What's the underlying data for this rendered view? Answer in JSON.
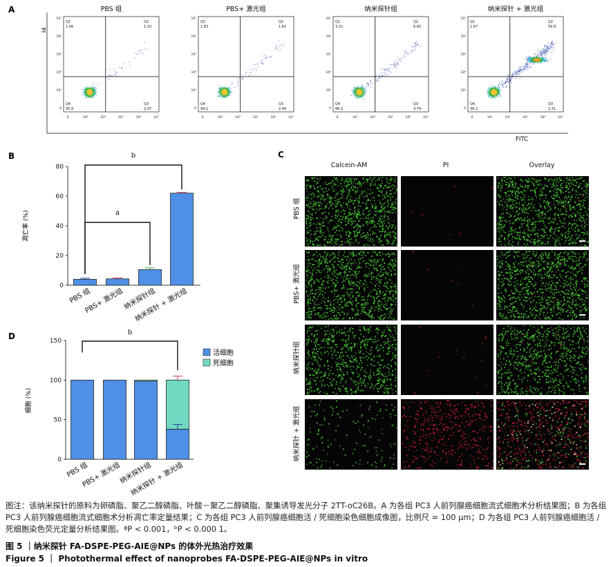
{
  "panel_letters": {
    "A": "A",
    "B": "B",
    "C": "C",
    "D": "D"
  },
  "flow": {
    "y_axis_label": "PI",
    "x_axis_label": "FITC",
    "x_ticks": [
      "0",
      "10³",
      "10⁴",
      "10⁵",
      "10⁶",
      "10⁷"
    ],
    "y_ticks": [
      "10⁷",
      "10⁶",
      "10⁵",
      "10⁴",
      "10³",
      "0"
    ],
    "plots": [
      {
        "title": "PBS 组",
        "q1_label": "Q1",
        "q1": "1.06",
        "q2_label": "Q2",
        "q2": "1.10",
        "q3_label": "Q3",
        "q3": "2.07",
        "q4_label": "Q4",
        "q4": "95.8"
      },
      {
        "title": "PBS+ 激光组",
        "q1_label": "Q1",
        "q1": "1.83",
        "q2_label": "Q2",
        "q2": "1.61",
        "q3_label": "Q3",
        "q3": "2.49",
        "q4_label": "Q4",
        "q4": "94.1"
      },
      {
        "title": "纳米探针组",
        "q1_label": "Q1",
        "q1": "3.21",
        "q2_label": "Q2",
        "q2": "6.80",
        "q3_label": "Q3",
        "q3": "3.74",
        "q4_label": "Q4",
        "q4": "86.2"
      },
      {
        "title": "纳米探针 + 激光组",
        "q1_label": "Q1",
        "q1": "1.67",
        "q2_label": "Q2",
        "q2": "59.8",
        "q3_label": "Q3",
        "q3": "2.31",
        "q4_label": "Q4",
        "q4": "36.2"
      }
    ]
  },
  "chart_data": [
    {
      "type": "bar",
      "panel": "B",
      "ylabel": "凋亡率 (%)",
      "ylim": [
        0,
        80
      ],
      "yticks": [
        "0",
        "20",
        "40",
        "60",
        "80"
      ],
      "categories": [
        "PBS 组",
        "PBS+ 激光组",
        "纳米探针组",
        "纳米探针 + 激光组"
      ],
      "values": [
        4.0,
        4.3,
        10.5,
        62.0
      ],
      "errors": [
        0.7,
        0.6,
        1.2,
        0.6
      ],
      "significance": [
        {
          "label": "b",
          "from": 0,
          "to": 3
        },
        {
          "label": "a",
          "from": 0,
          "to": 2
        }
      ],
      "colors": {
        "bar": "#4f8fe6",
        "error": [
          "#1f3f9e",
          "#c23a6f",
          "#3aa640",
          "#c23a6f"
        ]
      }
    },
    {
      "type": "bar",
      "stacked": true,
      "panel": "D",
      "ylabel": "细胞 (%)",
      "ylim": [
        0,
        150
      ],
      "yticks": [
        "0",
        "50",
        "100",
        "150"
      ],
      "categories": [
        "PBS 组",
        "PBS+ 激光组",
        "纳米探针组",
        "纳米探针 + 激光组"
      ],
      "series": [
        {
          "name": "活细胞",
          "values": [
            100,
            100,
            98.5,
            38
          ],
          "error": [
            0,
            0,
            0,
            6
          ],
          "color": "#4f8fe6"
        },
        {
          "name": "死细胞",
          "values": [
            0,
            0,
            1.5,
            62
          ],
          "error": [
            0,
            0,
            0,
            5
          ],
          "color": "#72d8c2"
        }
      ],
      "significance": [
        {
          "label": "b",
          "from": 0,
          "to": 3
        }
      ],
      "legend": "top-right"
    }
  ],
  "imaging": {
    "columns": [
      "Calcein-AM",
      "PI",
      "Overlay"
    ],
    "rows": [
      "PBS 组",
      "PBS+ 激光组",
      "纳米探针组",
      "纳米探针 + 激光组"
    ]
  },
  "caption": {
    "body": "图注：该纳米探针的原料为卵磷脂、聚乙二醇磷脂、叶酸－聚乙二醇磷脂、聚集诱导发光分子 2TT-oC26B。A 为各组 PC3 人前列腺癌细胞流式细胞术分析结果图；B 为各组 PC3 人前列腺癌细胞流式细胞术分析凋亡率定量结果；C 为各组 PC3 人前列腺癌细胞活 / 死细胞染色细胞成像图，比例尺 = 100 μm；D 为各组 PC3 人前列腺癌细胞活 / 死细胞染色荧光定量分析结果图。ªP < 0.001，ᵇP < 0.000 1。",
    "fig_cn": "图 5 ｜纳米探针 FA-DSPE-PEG-AIE@NPs 的体外光热治疗效果",
    "fig_en": "Figure 5 ｜ Photothermal effect of nanoprobes FA-DSPE-PEG-AIE@NPs in vitro"
  }
}
